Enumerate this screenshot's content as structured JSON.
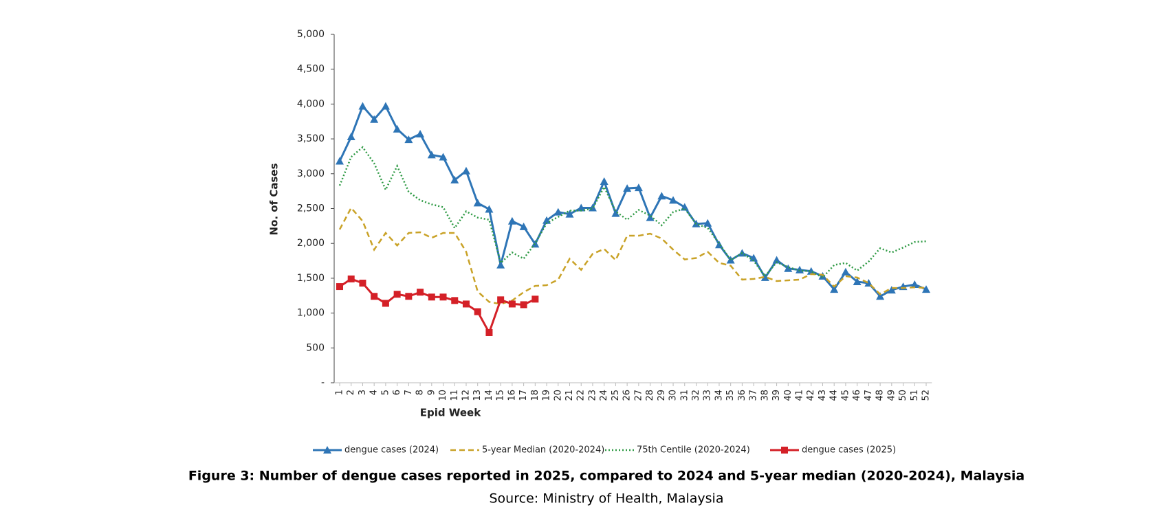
{
  "chart_data": {
    "type": "line",
    "title": "Figure 3:  Number of dengue cases reported in 2025, compared to 2024 and 5-year median (2020-2024), Malaysia",
    "subtitle": "Source: Ministry of Health, Malaysia",
    "x_label": "Epid Week",
    "y_label": "No. of Cases",
    "categories": [
      "1",
      "2",
      "3",
      "4",
      "5",
      "6",
      "7",
      "8",
      "9",
      "10",
      "11",
      "12",
      "13",
      "14",
      "15",
      "16",
      "17",
      "18",
      "19",
      "20",
      "21",
      "22",
      "23",
      "24",
      "25",
      "26",
      "27",
      "28",
      "29",
      "30",
      "31",
      "32",
      "33",
      "34",
      "35",
      "36",
      "37",
      "38",
      "39",
      "40",
      "41",
      "42",
      "43",
      "44",
      "45",
      "46",
      "47",
      "48",
      "49",
      "50",
      "51",
      "52"
    ],
    "ylim": [
      0,
      5000
    ],
    "yticks": [
      {
        "value": 0,
        "label": "-"
      },
      500,
      {
        "value": 1000,
        "label": "1,000"
      },
      {
        "value": 1500,
        "label": "1,500"
      },
      {
        "value": 2000,
        "label": "2,000"
      },
      {
        "value": 2500,
        "label": "2,500"
      },
      {
        "value": 3000,
        "label": "3,000"
      },
      {
        "value": 3500,
        "label": "3,500"
      },
      {
        "value": 4000,
        "label": "4,000"
      },
      {
        "value": 4500,
        "label": "4,500"
      },
      {
        "value": 5000,
        "label": "5,000"
      }
    ],
    "grid": false,
    "legend": "bottom",
    "series": [
      {
        "name": "dengue cases (2024)",
        "color": "#2e75b6",
        "style": "solid",
        "marker": "triangle",
        "values": [
          3180,
          3530,
          3970,
          3780,
          3970,
          3640,
          3490,
          3570,
          3270,
          3240,
          2910,
          3040,
          2580,
          2490,
          1690,
          2320,
          2240,
          1990,
          2330,
          2450,
          2420,
          2510,
          2510,
          2890,
          2430,
          2790,
          2800,
          2370,
          2680,
          2620,
          2520,
          2280,
          2290,
          1980,
          1760,
          1860,
          1790,
          1510,
          1760,
          1640,
          1620,
          1600,
          1530,
          1340,
          1590,
          1450,
          1430,
          1240,
          1330,
          1380,
          1410,
          1340
        ]
      },
      {
        "name": "5-year Median (2020-2024)",
        "color": "#c9a227",
        "style": "dashed",
        "marker": "none",
        "values": [
          2200,
          2510,
          2320,
          1910,
          2150,
          1970,
          2150,
          2160,
          2080,
          2150,
          2150,
          1880,
          1310,
          1160,
          1130,
          1180,
          1300,
          1390,
          1400,
          1480,
          1780,
          1620,
          1850,
          1920,
          1760,
          2110,
          2110,
          2140,
          2070,
          1910,
          1770,
          1790,
          1880,
          1720,
          1680,
          1480,
          1490,
          1520,
          1460,
          1470,
          1480,
          1560,
          1550,
          1380,
          1530,
          1510,
          1430,
          1270,
          1360,
          1360,
          1370,
          1360
        ]
      },
      {
        "name": "75th Centile (2020-2024)",
        "color": "#2e9a44",
        "style": "dotted",
        "marker": "none",
        "values": [
          2830,
          3240,
          3380,
          3150,
          2770,
          3110,
          2740,
          2620,
          2560,
          2520,
          2220,
          2460,
          2370,
          2340,
          1720,
          1870,
          1780,
          2000,
          2290,
          2380,
          2470,
          2470,
          2500,
          2810,
          2460,
          2340,
          2480,
          2400,
          2260,
          2450,
          2500,
          2280,
          2220,
          2000,
          1760,
          1860,
          1750,
          1530,
          1730,
          1660,
          1610,
          1600,
          1510,
          1690,
          1720,
          1610,
          1740,
          1930,
          1870,
          1940,
          2020,
          2030
        ]
      },
      {
        "name": "dengue cases (2025)",
        "color": "#d42027",
        "style": "solid",
        "marker": "square",
        "values": [
          1380,
          1490,
          1430,
          1240,
          1140,
          1270,
          1240,
          1300,
          1230,
          1230,
          1180,
          1130,
          1020,
          720,
          1190,
          1130,
          1120,
          1200,
          null,
          null,
          null,
          null,
          null,
          null,
          null,
          null,
          null,
          null,
          null,
          null,
          null,
          null,
          null,
          null,
          null,
          null,
          null,
          null,
          null,
          null,
          null,
          null,
          null,
          null,
          null,
          null,
          null,
          null,
          null,
          null,
          null,
          null
        ]
      }
    ]
  }
}
